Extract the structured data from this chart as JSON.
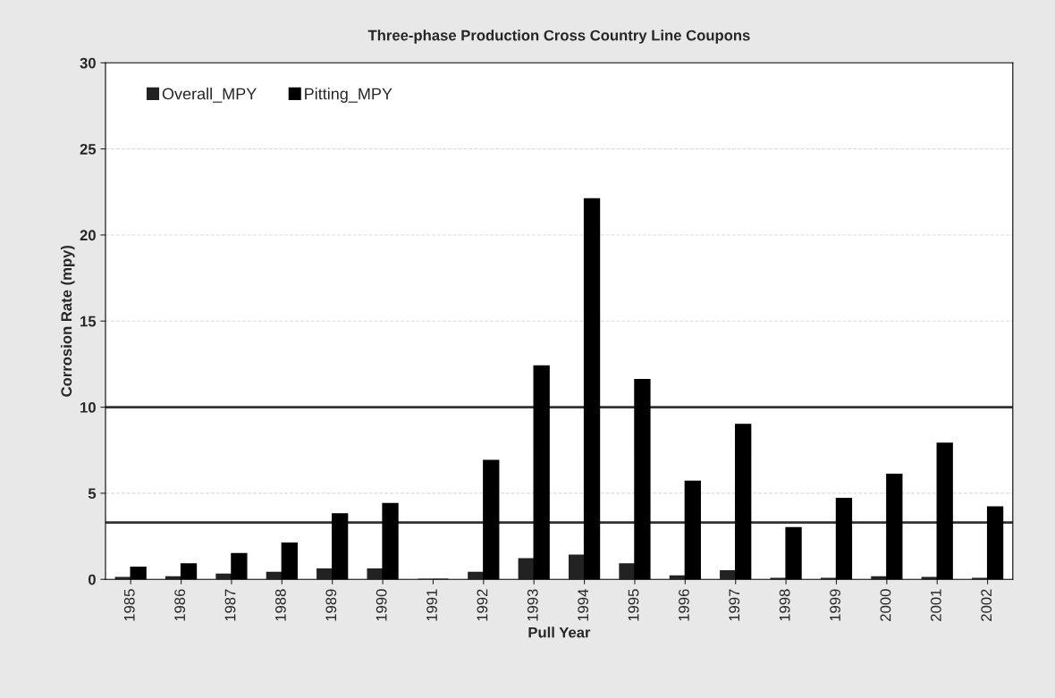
{
  "chart_data": {
    "type": "bar",
    "title": "Three-phase Production Cross Country Line Coupons",
    "xlabel": "Pull Year",
    "ylabel": "Corrosion Rate (mpy)",
    "categories": [
      "1985",
      "1986",
      "1987",
      "1988",
      "1989",
      "1990",
      "1991",
      "1992",
      "1993",
      "1994",
      "1995",
      "1996",
      "1997",
      "1998",
      "1999",
      "2000",
      "2001",
      "2002"
    ],
    "series": [
      {
        "name": "Overall_MPY",
        "color": "#222222",
        "values": [
          0.1,
          0.15,
          0.3,
          0.4,
          0.6,
          0.6,
          0,
          0.4,
          1.2,
          1.4,
          0.9,
          0.2,
          0.5,
          0.05,
          0.05,
          0.15,
          0.1,
          0.05
        ]
      },
      {
        "name": "Pitting_MPY",
        "color": "#000000",
        "values": [
          0.7,
          0.9,
          1.5,
          2.1,
          3.8,
          4.4,
          0,
          6.9,
          12.4,
          22.1,
          11.6,
          5.7,
          9.0,
          3.0,
          4.7,
          6.1,
          7.9,
          4.2
        ]
      }
    ],
    "ylim": [
      0,
      30
    ],
    "yticks": [
      0,
      5,
      10,
      15,
      20,
      25,
      30
    ],
    "ref_lines": [
      {
        "axis": "y",
        "value": 10,
        "color": "#333333"
      },
      {
        "axis": "y",
        "value": 3.3,
        "color": "#333333"
      }
    ],
    "grid": "y",
    "legend": "top left"
  }
}
